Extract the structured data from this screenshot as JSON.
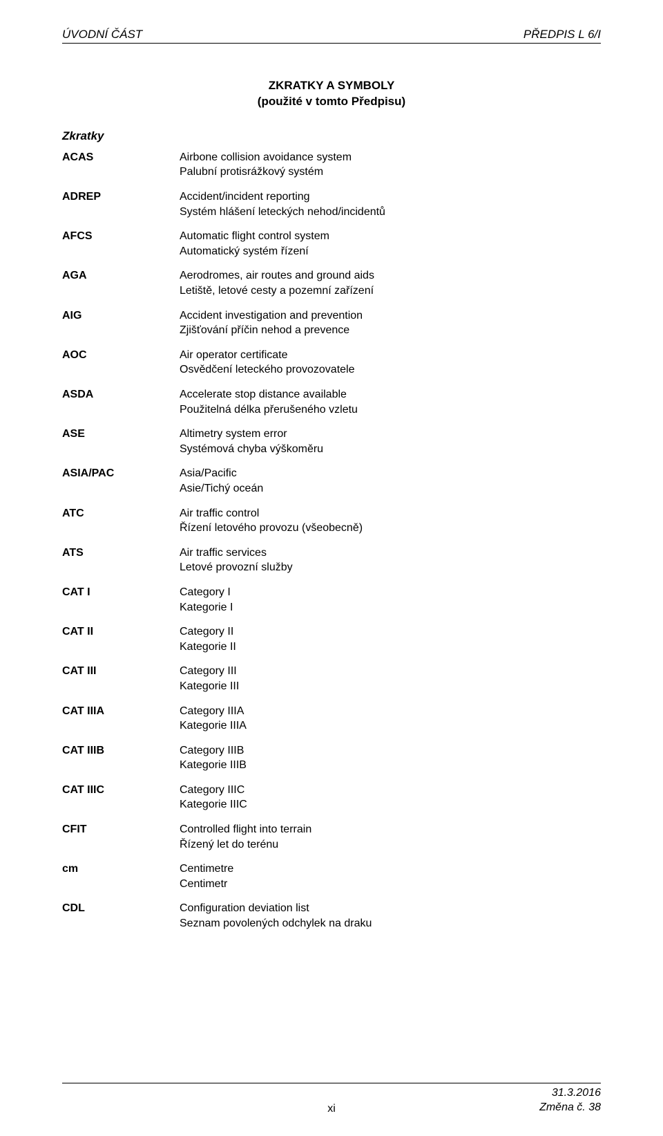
{
  "header": {
    "left": "ÚVODNÍ ČÁST",
    "right": "PŘEDPIS L 6/I"
  },
  "title": {
    "line1": "ZKRATKY A SYMBOLY",
    "line2": "(použité v tomto Předpisu)"
  },
  "section_label": "Zkratky",
  "entries": [
    {
      "code": "ACAS",
      "en": "Airbone collision avoidance system",
      "cs": "Palubní protisrážkový systém"
    },
    {
      "code": "ADREP",
      "en": "Accident/incident reporting",
      "cs": "Systém hlášení leteckých nehod/incidentů"
    },
    {
      "code": "AFCS",
      "en": "Automatic flight control system",
      "cs": "Automatický systém řízení"
    },
    {
      "code": "AGA",
      "en": "Aerodromes, air routes and ground aids",
      "cs": "Letiště, letové cesty a pozemní zařízení"
    },
    {
      "code": "AIG",
      "en": "Accident investigation and prevention",
      "cs": "Zjišťování příčin nehod a prevence"
    },
    {
      "code": "AOC",
      "en": "Air operator certificate",
      "cs": "Osvědčení leteckého provozovatele"
    },
    {
      "code": "ASDA",
      "en": "Accelerate stop distance available",
      "cs": "Použitelná délka přerušeného vzletu"
    },
    {
      "code": "ASE",
      "en": "Altimetry system error",
      "cs": "Systémová chyba výškoměru"
    },
    {
      "code": "ASIA/PAC",
      "en": "Asia/Pacific",
      "cs": "Asie/Tichý oceán"
    },
    {
      "code": "ATC",
      "en": "Air traffic control",
      "cs": "Řízení letového provozu (všeobecně)"
    },
    {
      "code": "ATS",
      "en": "Air traffic services",
      "cs": "Letové provozní služby"
    },
    {
      "code": "CAT I",
      "en": "Category I",
      "cs": "Kategorie I"
    },
    {
      "code": "CAT II",
      "en": "Category II",
      "cs": "Kategorie II"
    },
    {
      "code": "CAT III",
      "en": "Category III",
      "cs": "Kategorie III"
    },
    {
      "code": "CAT IIIA",
      "en": "Category IIIA",
      "cs": "Kategorie IIIA"
    },
    {
      "code": "CAT IIIB",
      "en": "Category IIIB",
      "cs": "Kategorie IIIB"
    },
    {
      "code": "CAT IIIC",
      "en": "Category IIIC",
      "cs": "Kategorie IIIC"
    },
    {
      "code": "CFIT",
      "en": "Controlled flight into terrain",
      "cs": "Řízený let do terénu"
    },
    {
      "code": "cm",
      "en": "Centimetre",
      "cs": "Centimetr"
    },
    {
      "code": "CDL",
      "en": "Configuration deviation list",
      "cs": "Seznam povolených odchylek na draku"
    }
  ],
  "footer": {
    "page_number": "xi",
    "date": "31.3.2016",
    "change": "Změna č. 38"
  },
  "colors": {
    "background": "#ffffff",
    "text": "#000000",
    "rule": "#000000"
  }
}
